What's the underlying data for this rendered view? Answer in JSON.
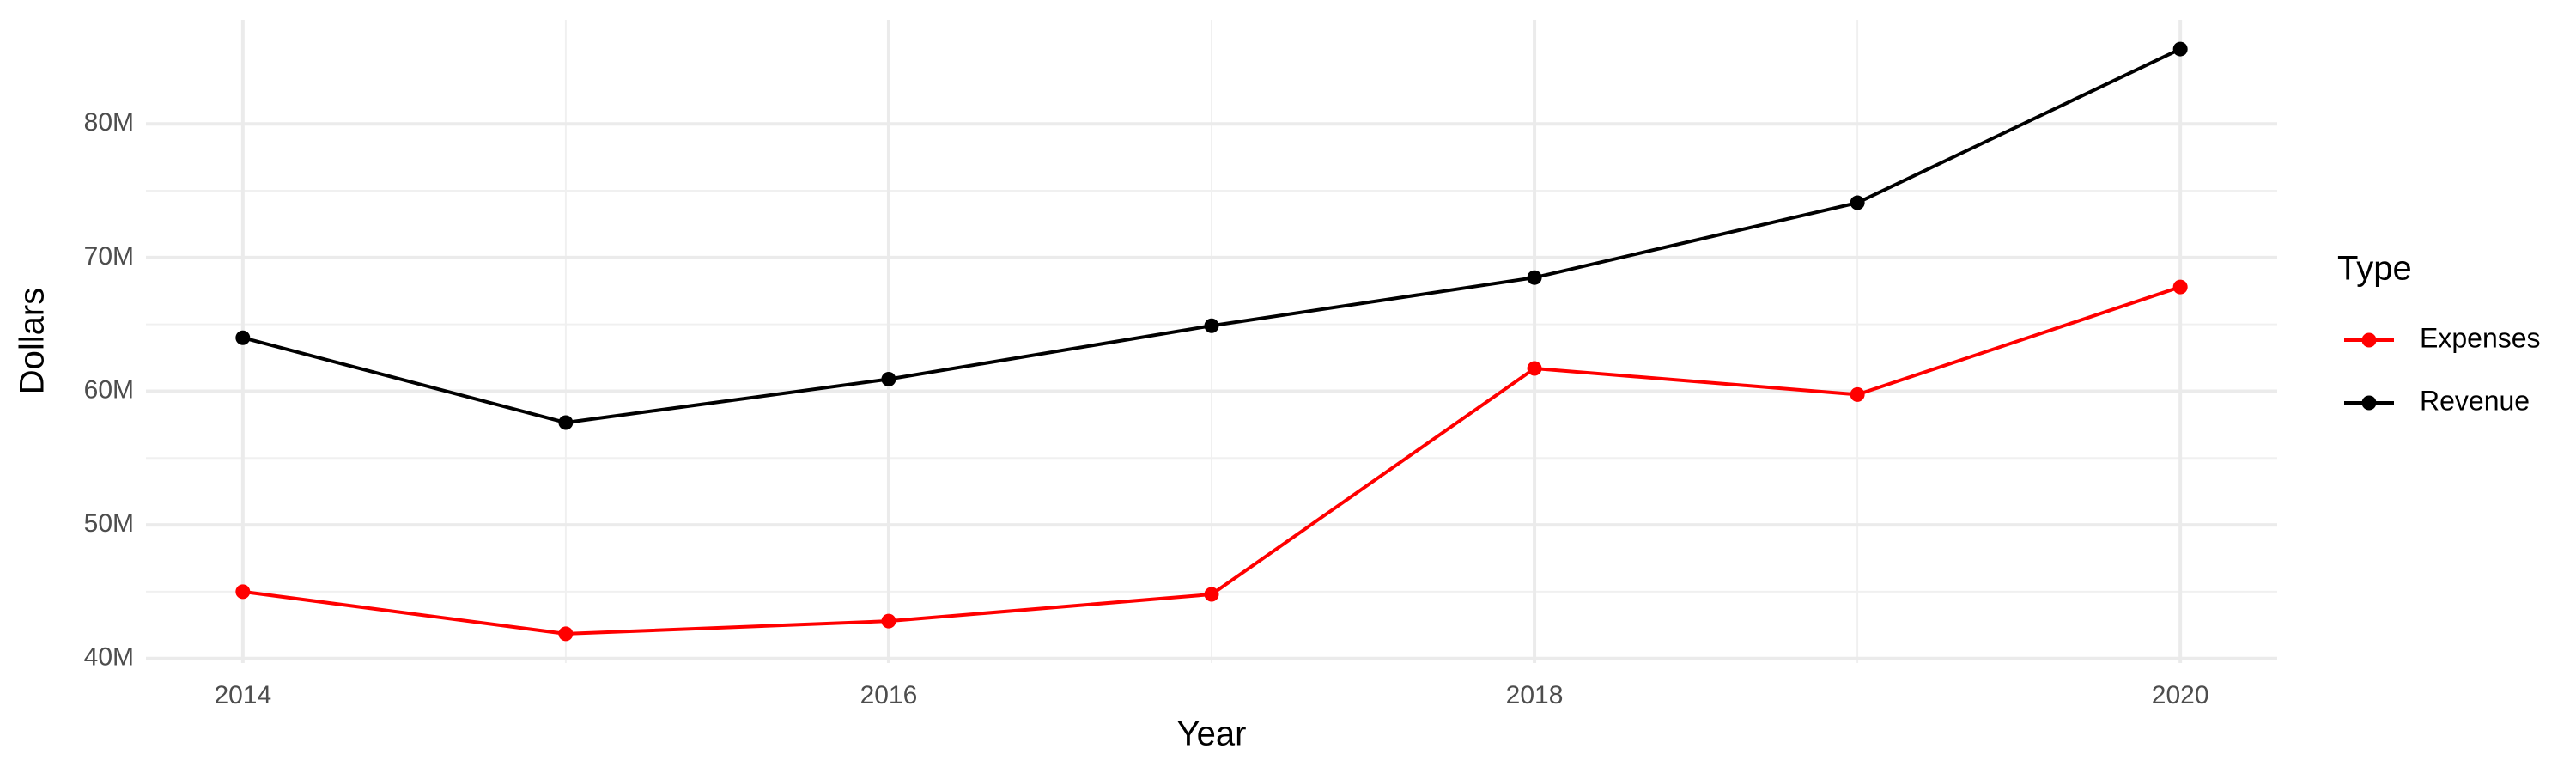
{
  "chart_data": {
    "type": "line",
    "x_label": "Year",
    "y_label": "Dollars",
    "legend_title": "Type",
    "legend_position": "right",
    "grid": true,
    "x": [
      2014,
      2015,
      2016,
      2017,
      2018,
      2019,
      2020
    ],
    "series": [
      {
        "name": "Expenses",
        "color": "#ff0000",
        "values": [
          45000000,
          41850000,
          42800000,
          44800000,
          61700000,
          59750000,
          67800000
        ]
      },
      {
        "name": "Revenue",
        "color": "#000000",
        "values": [
          64000000,
          57650000,
          60900000,
          64900000,
          68500000,
          74100000,
          85600000
        ]
      }
    ],
    "xlim": [
      2013.7,
      2020.3
    ],
    "xticks": [
      2014,
      2016,
      2018,
      2020
    ],
    "ylim": [
      39660000,
      87790000
    ],
    "yticks": [
      {
        "value": 40000000,
        "label": "40M"
      },
      {
        "value": 50000000,
        "label": "50M"
      },
      {
        "value": 60000000,
        "label": "60M"
      },
      {
        "value": 70000000,
        "label": "70M"
      },
      {
        "value": 80000000,
        "label": "80M"
      }
    ]
  }
}
